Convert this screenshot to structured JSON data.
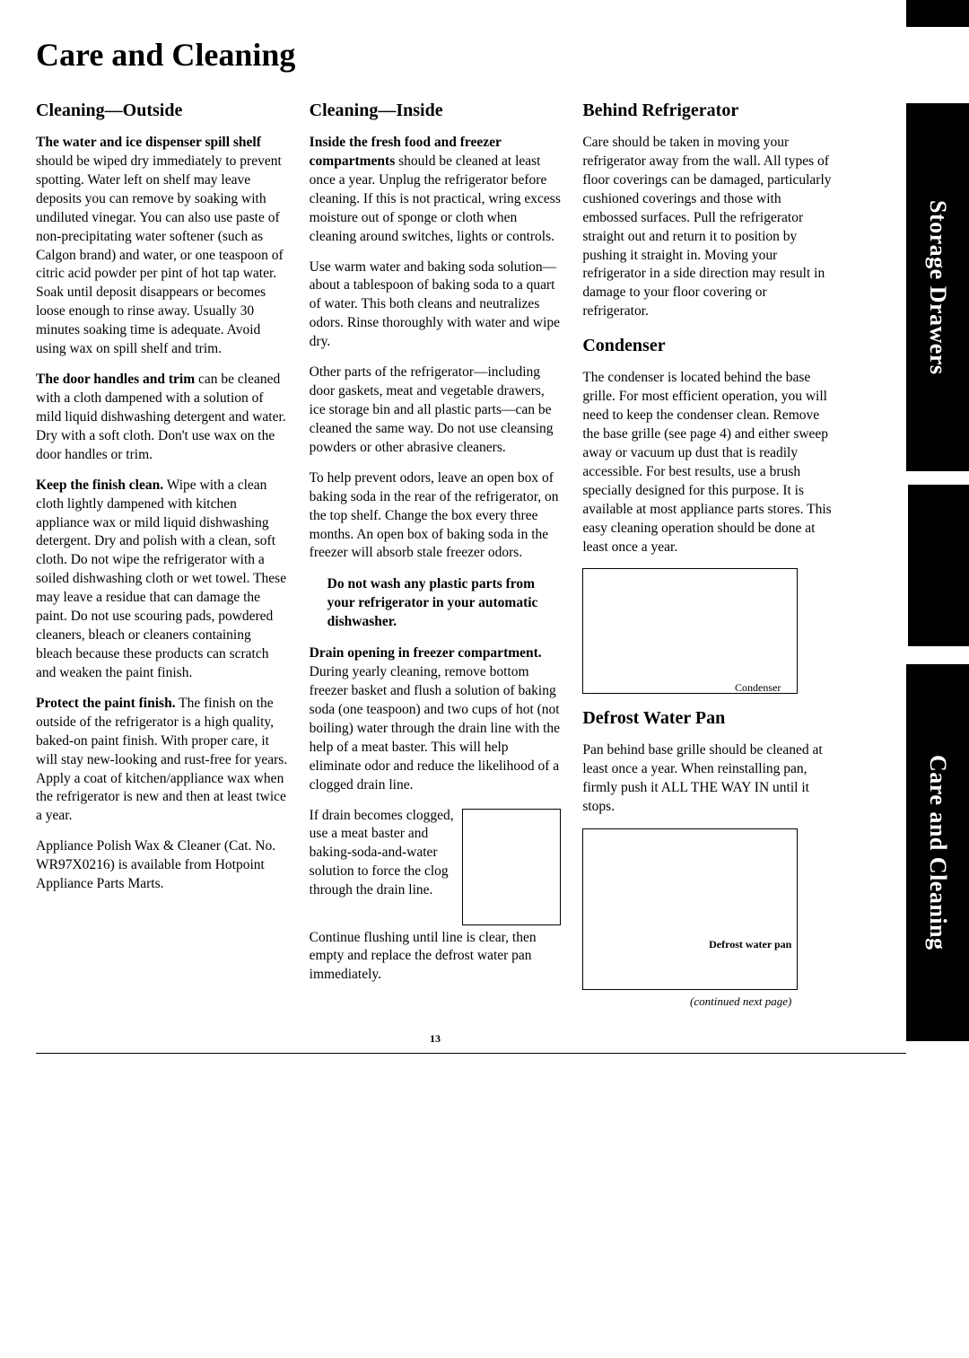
{
  "page_title": "Care and Cleaning",
  "page_number": "13",
  "tabs": {
    "upper": "Storage Drawers",
    "lower": "Care and Cleaning"
  },
  "col1": {
    "heading": "Cleaning—Outside",
    "p1_lead": "The water and ice dispenser spill shelf",
    "p1": " should be wiped dry immediately to prevent spotting. Water left on shelf may leave deposits you can remove by soaking with undiluted vinegar. You can also use paste of non-precipitating water softener (such as Calgon brand) and water, or one teaspoon of citric acid powder per pint of hot tap water. Soak until deposit disappears or becomes loose enough to rinse away. Usually 30 minutes soaking time is adequate. Avoid using wax on spill shelf and trim.",
    "p2_lead": "The door handles and trim",
    "p2": " can be cleaned with a cloth dampened with a solution of mild liquid dishwashing detergent and water. Dry with a soft cloth. Don't use wax on the door handles or trim.",
    "p3_lead": "Keep the finish clean.",
    "p3": " Wipe with a clean cloth lightly dampened with kitchen appliance wax or mild liquid dishwashing detergent. Dry and polish with a clean, soft cloth. Do not wipe the refrigerator with a soiled dishwashing cloth or wet towel. These may leave a residue that can damage the paint. Do not use scouring pads, powdered cleaners, bleach or cleaners containing bleach because these products can scratch and weaken the paint finish.",
    "p4_lead": "Protect the paint finish.",
    "p4": " The finish on the outside of the refrigerator is a high quality, baked-on paint finish. With proper care, it will stay new-looking and rust-free for years. Apply a coat of kitchen/appliance wax when the refrigerator is new and then at least twice a year.",
    "p5": "Appliance Polish Wax & Cleaner (Cat. No. WR97X0216) is available from Hotpoint Appliance Parts Marts."
  },
  "col2": {
    "heading": "Cleaning—Inside",
    "p1_lead": "Inside the fresh food and freezer compartments",
    "p1": " should be cleaned at least once a year. Unplug the refrigerator before cleaning. If this is not practical, wring excess moisture out of sponge or cloth when cleaning around switches, lights or controls.",
    "p2": "Use warm water and baking soda solution—about a tablespoon of baking soda to a quart of water. This both cleans and neutralizes odors. Rinse thoroughly with water and wipe dry.",
    "p3": "Other parts of the refrigerator—including door gaskets, meat and vegetable drawers, ice storage bin and all plastic parts—can be cleaned the same way. Do not use cleansing powders or other abrasive cleaners.",
    "p4": "To help prevent odors, leave an open box of baking soda in the rear of the refrigerator, on the top shelf. Change the box every three months. An open box of baking soda in the freezer will absorb stale freezer odors.",
    "callout": "Do not wash any plastic parts from your refrigerator in your automatic dishwasher.",
    "p5_lead": "Drain opening in freezer compartment.",
    "p5": " During yearly cleaning, remove bottom freezer basket and flush a solution of baking soda (one teaspoon) and two cups of hot (not boiling) water through the drain line with the help of a meat baster. This will help eliminate odor and reduce the likelihood of a clogged drain line.",
    "p6": "If drain becomes clogged, use a meat baster and baking-soda-and-water solution to force the clog through the drain line.",
    "p7": "Continue flushing until line is clear, then empty and replace the defrost water pan immediately."
  },
  "col3": {
    "heading1": "Behind Refrigerator",
    "p1": "Care should be taken in moving your refrigerator away from the wall. All types of floor coverings can be damaged, particularly cushioned coverings and those with embossed surfaces. Pull the refrigerator straight out and return it to position by pushing it straight in. Moving your refrigerator in a side direction may result in damage to your floor covering or refrigerator.",
    "heading2": "Condenser",
    "p2": "The condenser is located behind the base grille. For most efficient operation, you will need to keep the condenser clean. Remove the base grille (see page 4) and either sweep away or vacuum up dust that is readily accessible. For best results, use a brush specially designed for this purpose. It is available at most appliance parts stores. This easy cleaning operation should be done at least once a year.",
    "condenser_label": "Condenser",
    "heading3": "Defrost Water Pan",
    "p3": "Pan behind base grille should be cleaned at least once a year. When reinstalling pan, firmly push it ALL THE WAY IN until it stops.",
    "defrost_label": "Defrost water pan",
    "continued": "(continued next page)"
  }
}
